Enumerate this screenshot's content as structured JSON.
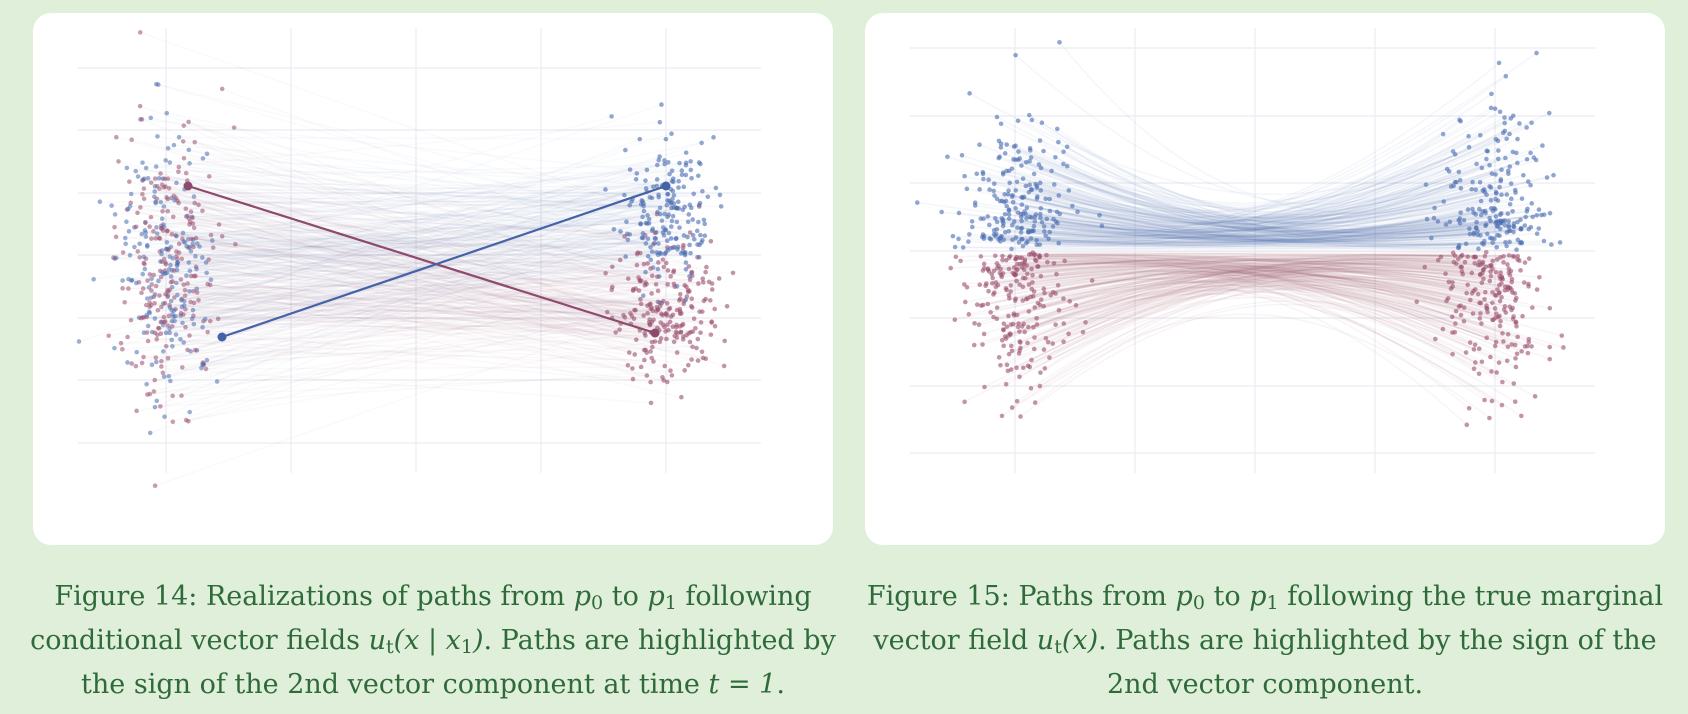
{
  "figures": [
    {
      "id": "fig14",
      "caption": {
        "figure_label": "Figure 14:",
        "text_1": "Realizations of paths from",
        "text_2": "to",
        "text_3": "following conditional vector fields",
        "text_4": ". Paths are highlighted by the sign of the 2nd vector component at time",
        "text_5": "."
      },
      "math": {
        "p": "p",
        "sub0": "0",
        "sub1": "1",
        "u": "u",
        "t": "t",
        "cond_args": "(x | x",
        "close": ")",
        "time": "t = 1"
      }
    },
    {
      "id": "fig15",
      "caption": {
        "figure_label": "Figure 15:",
        "text_1": "Paths from",
        "text_2": "to",
        "text_3": "following the true marginal vector field",
        "text_4": ". Paths are highlighted by the sign of the 2nd vector component."
      },
      "math": {
        "p": "p",
        "sub0": "0",
        "sub1": "1",
        "u": "u",
        "t": "t",
        "marg_args": "(x)"
      }
    }
  ],
  "colors": {
    "positive": "#4a6db0",
    "negative": "#9b4f6e",
    "highlight_blue": "#4562a8",
    "highlight_red": "#8e4a6c",
    "caption": "#2f6b3a",
    "background": "#dfefda"
  }
}
